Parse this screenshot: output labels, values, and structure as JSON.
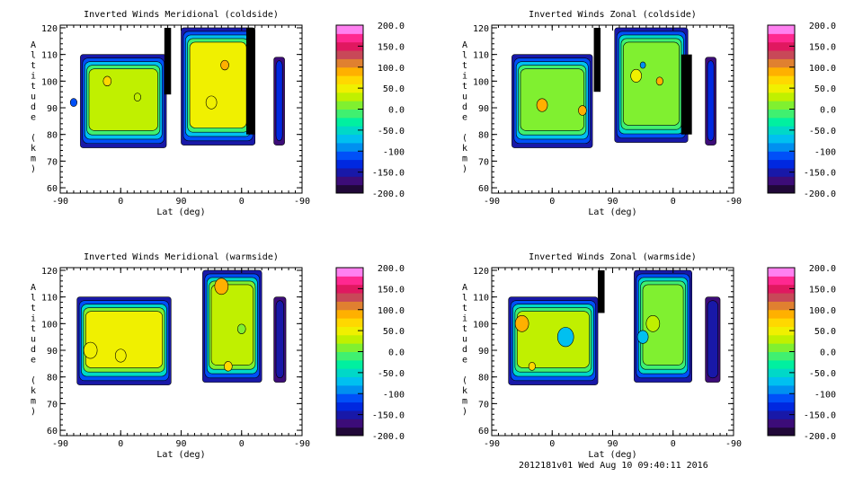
{
  "chart_data": [
    {
      "type": "heatmap",
      "title": "Inverted Winds Meridional (coldside)",
      "xlabel": "Lat (deg)",
      "ylabel": "Altitude (km)",
      "x_ticks": [
        "-90",
        "0",
        "90",
        "0",
        "-90"
      ],
      "y_ticks": [
        "60",
        "70",
        "80",
        "90",
        "100",
        "110",
        "120"
      ],
      "ylim": [
        58,
        121
      ]
    },
    {
      "type": "heatmap",
      "title": "Inverted Winds Zonal (coldside)",
      "xlabel": "Lat (deg)",
      "ylabel": "Altitude (km)",
      "x_ticks": [
        "-90",
        "0",
        "90",
        "0",
        "-90"
      ],
      "y_ticks": [
        "60",
        "70",
        "80",
        "90",
        "100",
        "110",
        "120"
      ],
      "ylim": [
        58,
        121
      ]
    },
    {
      "type": "heatmap",
      "title": "Inverted Winds Meridional (warmside)",
      "xlabel": "Lat (deg)",
      "ylabel": "Altitude (km)",
      "x_ticks": [
        "-90",
        "0",
        "90",
        "0",
        "-90"
      ],
      "y_ticks": [
        "60",
        "70",
        "80",
        "90",
        "100",
        "110",
        "120"
      ],
      "ylim": [
        58,
        121
      ]
    },
    {
      "type": "heatmap",
      "title": "Inverted Winds Zonal (warmside)",
      "xlabel": "Lat (deg)",
      "ylabel": "Altitude (km)",
      "x_ticks": [
        "-90",
        "0",
        "90",
        "0",
        "-90"
      ],
      "y_ticks": [
        "60",
        "70",
        "80",
        "90",
        "100",
        "110",
        "120"
      ],
      "ylim": [
        58,
        121
      ]
    }
  ],
  "colorbar": {
    "labels": [
      "200.0",
      "150.0",
      "100.0",
      "50.0",
      "0.0",
      "-50.0",
      "-100",
      "-150.0",
      "-200.0"
    ],
    "range": [
      -200,
      200
    ],
    "colors": [
      "#200838",
      "#3c0c78",
      "#1818a8",
      "#0028e0",
      "#0050f8",
      "#0090f0",
      "#00c0f0",
      "#00d8c8",
      "#00f0a0",
      "#40f070",
      "#80f030",
      "#c0f000",
      "#f0f000",
      "#ffd800",
      "#ffb000",
      "#e08030",
      "#c84858",
      "#e01860",
      "#ff2890",
      "#ff80f0"
    ]
  },
  "footer": "2012181v01 Wed Aug 10 09:40:11 2016"
}
